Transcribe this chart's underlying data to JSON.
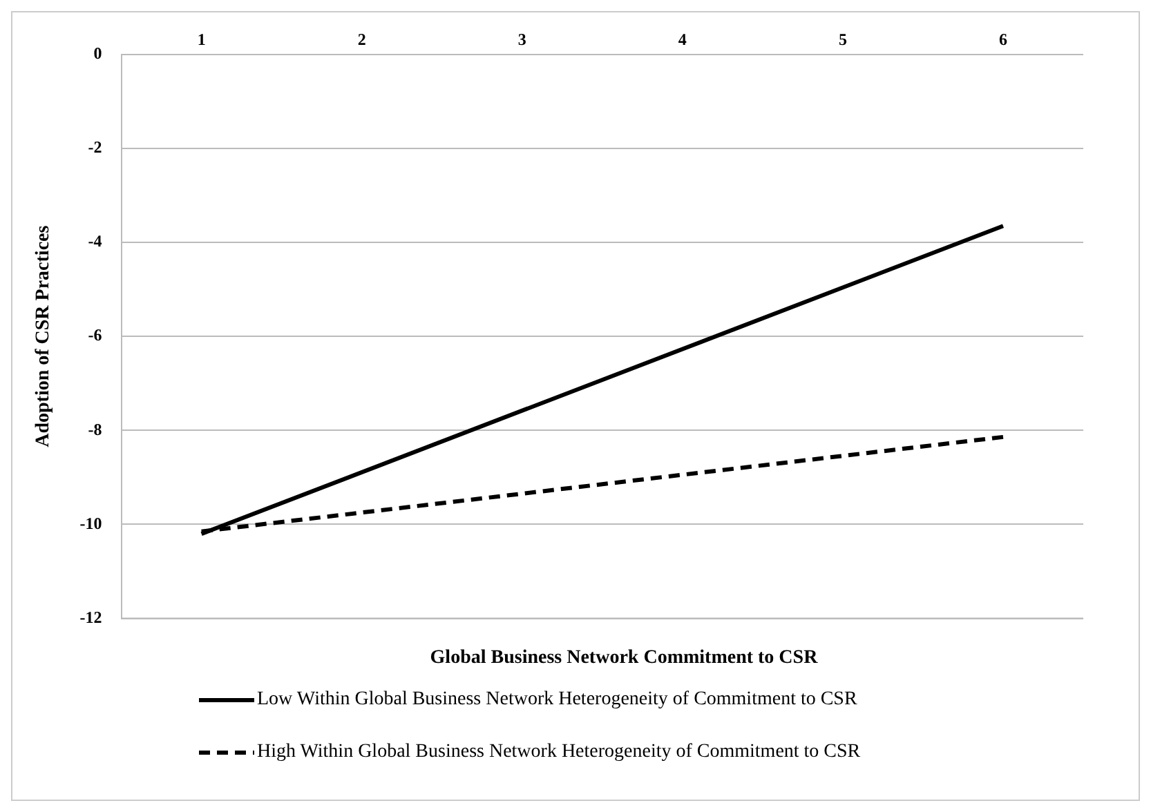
{
  "chart_data": {
    "type": "line",
    "xlabel": "Global Business Network Commitment to CSR",
    "ylabel": "Adoption of CSR Practices",
    "x": [
      1,
      6
    ],
    "xlim": [
      0.5,
      6.5
    ],
    "xticks": [
      1,
      2,
      3,
      4,
      5,
      6
    ],
    "ylim": [
      -12,
      0
    ],
    "yticks": [
      -12,
      -10,
      -8,
      -6,
      -4,
      -2,
      0
    ],
    "grid": "y",
    "legend": "bottom",
    "marker": "none",
    "series": [
      {
        "name": "Low Within Global Business Network Heterogeneity of Commitment to CSR",
        "color": "#000000",
        "line_style": "solid",
        "values": [
          -10.2,
          -3.65
        ]
      },
      {
        "name": "High Within Global Business Network Heterogeneity of Commitment to CSR",
        "color": "#000000",
        "line_style": "dashed",
        "values": [
          -10.15,
          -8.14
        ]
      }
    ]
  }
}
